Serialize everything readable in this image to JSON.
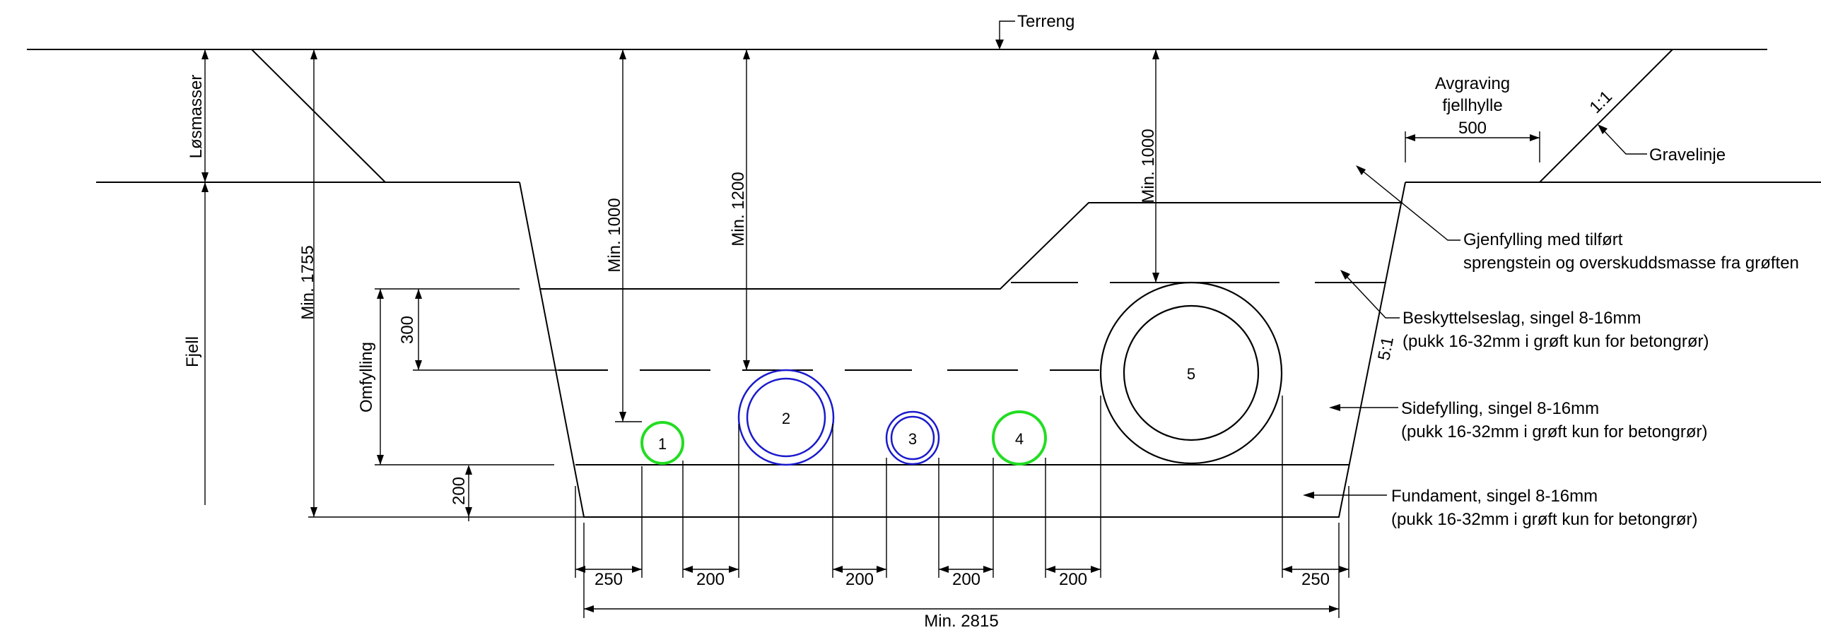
{
  "labels": {
    "terreng": "Terreng",
    "losmasser": "Løsmasser",
    "fjell": "Fjell",
    "omfylling": "Omfylling",
    "avgraving_line1": "Avgraving",
    "avgraving_line2": "fjellhylle",
    "gravelinje": "Gravelinje",
    "gjenfylling_line1": "Gjenfylling  med tilført",
    "gjenfylling_line2": "sprengstein og overskuddsmasse fra grøften",
    "beskyttelse_line1": "Beskyttelseslag, singel 8-16mm",
    "beskyttelse_line2": "(pukk 16-32mm i grøft kun for betongrør)",
    "sidefylling_line1": "Sidefylling, singel 8-16mm",
    "sidefylling_line2": "(pukk 16-32mm i grøft kun for betongrør)",
    "fundament_line1": "Fundament, singel 8-16mm",
    "fundament_line2": "(pukk 16-32mm i grøft kun for betongrør)"
  },
  "dimensions": {
    "min_1755": "Min. 1755",
    "min_1000_left": "Min. 1000",
    "min_1200": "Min. 1200",
    "min_1000_right": "Min. 1000",
    "d300": "300",
    "d200_vertical": "200",
    "d500": "500",
    "slope_1_1": "1:1",
    "slope_5_1": "5:1",
    "d250_left": "250",
    "d200_a": "200",
    "d200_b": "200",
    "d200_c": "200",
    "d200_d": "200",
    "d250_right": "250",
    "min_2815": "Min. 2815"
  },
  "pipes": [
    {
      "id": "1",
      "color": "#22dd22"
    },
    {
      "id": "2",
      "color": "#1a1acc"
    },
    {
      "id": "3",
      "color": "#1a1acc"
    },
    {
      "id": "4",
      "color": "#22dd22"
    },
    {
      "id": "5",
      "color": "#000000"
    }
  ]
}
